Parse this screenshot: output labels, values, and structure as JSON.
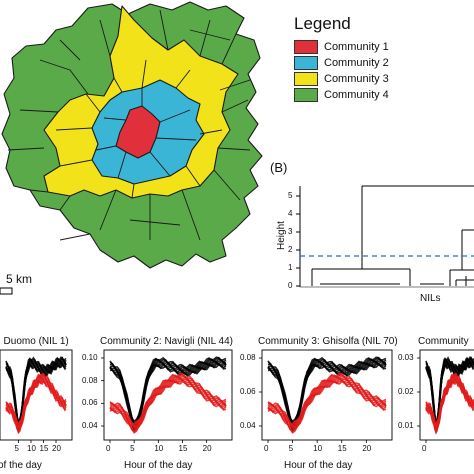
{
  "legend": {
    "title": "Legend",
    "items": [
      {
        "label": "Community 1",
        "color": "#e0303c"
      },
      {
        "label": "Community 2",
        "color": "#3ab5d6"
      },
      {
        "label": "Community 3",
        "color": "#f2e21a"
      },
      {
        "label": "Community 4",
        "color": "#5aaa4a"
      }
    ]
  },
  "map": {
    "scale_label": "5 km"
  },
  "dendrogram": {
    "panel_label": "(B)",
    "y_axis_label": "Height",
    "x_axis_label": "NILs",
    "y_ticks": [
      "5",
      "4",
      "3",
      "2",
      "1",
      "0"
    ]
  },
  "timeseries_panels": [
    {
      "title": ": Duomo (NIL 1)",
      "y_ticks": [],
      "x_ticks": [
        "5",
        "10",
        "15",
        "20"
      ],
      "x_label": "of the day"
    },
    {
      "title": "Community 2: Navigli (NIL 44)",
      "y_ticks": [
        "0.10",
        "0.08",
        "0.06",
        "0.04"
      ],
      "x_ticks": [
        "0",
        "5",
        "10",
        "15",
        "20"
      ],
      "x_label": "Hour of the day"
    },
    {
      "title": "Community 3: Ghisolfa (NIL 70)",
      "y_ticks": [
        "0.08",
        "0.06",
        "0.04"
      ],
      "x_ticks": [
        "0",
        "5",
        "10",
        "15",
        "20"
      ],
      "x_label": "Hour of the day"
    },
    {
      "title": "Community",
      "y_ticks": [
        "0.03",
        "0.02",
        "0.01"
      ],
      "x_ticks": [
        "0"
      ],
      "x_label": ""
    }
  ],
  "colors": {
    "black_series": "#000000",
    "red_series": "#e21b1b",
    "threshold_line": "#2a6db8"
  }
}
